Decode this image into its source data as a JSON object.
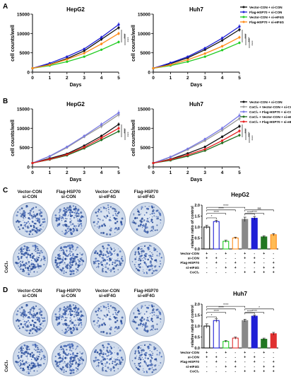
{
  "panels": {
    "A": "A",
    "B": "B",
    "C": "C",
    "D": "D"
  },
  "colors": {
    "black": "#111111",
    "blue": "#1f1fd6",
    "green": "#22cc22",
    "orange": "#ff8c1a",
    "gray": "#9a9a9a",
    "purple": "#7a7ae6",
    "darkgreen": "#1f6e1f",
    "red": "#e62020",
    "bar_white": "#ffffff",
    "bar_green_light": "#55dd55",
    "bar_orange_light": "#ffbb55",
    "bar_gray": "#888888",
    "bar_darkgreen": "#227722",
    "bar_red": "#e03030"
  },
  "chart_data": [
    {
      "id": "A-HepG2",
      "type": "line",
      "title": "HepG2",
      "xlabel": "Days",
      "ylabel": "cell counts/well",
      "x": [
        0,
        1,
        2,
        3,
        4,
        5
      ],
      "xlim": [
        0,
        5
      ],
      "ylim": [
        0,
        15000
      ],
      "yticks": [
        0,
        5000,
        10000,
        15000
      ],
      "series": [
        {
          "name": "Vector-CON + si-CON",
          "color": "#111111",
          "values": [
            1000,
            2000,
            3500,
            5500,
            8500,
            11500
          ]
        },
        {
          "name": "Flag-HSP70 + si-CON",
          "color": "#1f1fd6",
          "values": [
            1000,
            2300,
            4000,
            6000,
            9000,
            12300
          ]
        },
        {
          "name": "Vector-CON + si-eIF4G",
          "color": "#22cc22",
          "values": [
            1000,
            1700,
            2700,
            4000,
            5800,
            7800
          ]
        },
        {
          "name": "Flag-HSP70 + si-eIF4G",
          "color": "#ff8c1a",
          "values": [
            1000,
            1900,
            3300,
            4900,
            7300,
            10000
          ]
        }
      ],
      "sig": [
        "****",
        "****"
      ]
    },
    {
      "id": "A-Huh7",
      "type": "line",
      "title": "Huh7",
      "xlabel": "Days",
      "ylabel": "cell counts/well",
      "x": [
        0,
        1,
        2,
        3,
        4,
        5
      ],
      "xlim": [
        0,
        5
      ],
      "ylim": [
        0,
        15000
      ],
      "yticks": [
        0,
        5000,
        10000,
        15000
      ],
      "series": [
        {
          "name": "Vector-CON + si-CON",
          "color": "#111111",
          "values": [
            1000,
            2200,
            3700,
            5800,
            8200,
            11000
          ]
        },
        {
          "name": "Flag-HSP70 + si-CON",
          "color": "#1f1fd6",
          "values": [
            1000,
            2400,
            4000,
            6200,
            8800,
            11800
          ]
        },
        {
          "name": "Vector-CON + si-eIF4G",
          "color": "#22cc22",
          "values": [
            1000,
            1700,
            2700,
            4000,
            5700,
            7600
          ]
        },
        {
          "name": "Flag-HSP70 + si-eIF4G",
          "color": "#ff8c1a",
          "values": [
            1000,
            1900,
            3200,
            4800,
            6700,
            9000
          ]
        }
      ],
      "sig": [
        "****",
        "****",
        "****"
      ]
    },
    {
      "id": "B-HepG2",
      "type": "line",
      "title": "HepG2",
      "xlabel": "Days",
      "ylabel": "cell counts/well",
      "x": [
        0,
        1,
        2,
        3,
        4,
        5
      ],
      "xlim": [
        0,
        5
      ],
      "ylim": [
        0,
        15000
      ],
      "yticks": [
        0,
        5000,
        10000,
        15000
      ],
      "series": [
        {
          "name": "Vector-CON + si-CON",
          "color": "#111111",
          "values": [
            1000,
            2200,
            3400,
            5500,
            8000,
            11000
          ]
        },
        {
          "name": "CoCl₂ + Vector-CON + si-CON",
          "color": "#9a9a9a",
          "values": [
            1000,
            2700,
            5000,
            7800,
            10500,
            13500
          ]
        },
        {
          "name": "CoCl₂ + Flag-HSP70 + si-CON",
          "color": "#7a7ae6",
          "values": [
            1000,
            2800,
            5200,
            8000,
            11000,
            14000
          ]
        },
        {
          "name": "CoCl₂ + Vector-CON + si-eIF4G",
          "color": "#1f6e1f",
          "values": [
            1000,
            1900,
            3000,
            4800,
            7000,
            9200
          ]
        },
        {
          "name": "CoCl₂ + Flag-HSP70 + si-eIF4G",
          "color": "#e62020",
          "values": [
            1000,
            2000,
            3200,
            5100,
            7500,
            10000
          ]
        }
      ],
      "sig": [
        "****",
        "****"
      ]
    },
    {
      "id": "B-Huh7",
      "type": "line",
      "title": "Huh7",
      "xlabel": "Days",
      "ylabel": "cell counts/well",
      "x": [
        0,
        1,
        2,
        3,
        4,
        5
      ],
      "xlim": [
        0,
        5
      ],
      "ylim": [
        0,
        15000
      ],
      "yticks": [
        0,
        5000,
        10000,
        15000
      ],
      "series": [
        {
          "name": "Vector-CON + si-CON",
          "color": "#111111",
          "values": [
            1000,
            2000,
            3500,
            5200,
            7800,
            10500
          ]
        },
        {
          "name": "CoCl₂ + Vector-CON + si-CON",
          "color": "#9a9a9a",
          "values": [
            1000,
            2500,
            4500,
            6800,
            9500,
            12500
          ]
        },
        {
          "name": "CoCl₂ + Flag-HSP70 + si-CON",
          "color": "#7a7ae6",
          "values": [
            1000,
            2600,
            4700,
            7200,
            10000,
            13300
          ]
        },
        {
          "name": "CoCl₂ + Vector-CON + si-eIF4G",
          "color": "#1f6e1f",
          "values": [
            1000,
            1700,
            2800,
            4200,
            6200,
            8200
          ]
        },
        {
          "name": "CoCl₂ + Flag-HSP70 + si-eIF4G",
          "color": "#e62020",
          "values": [
            1000,
            1900,
            3100,
            4600,
            6800,
            9300
          ]
        }
      ],
      "sig": [
        "****",
        "****",
        "****"
      ]
    },
    {
      "id": "C-bar",
      "type": "bar",
      "title": "HepG2",
      "ylabel": "relative ratio of control",
      "ylim": [
        0,
        2.0
      ],
      "yticks": [
        "0.0",
        "0.5",
        "1.0",
        "1.5",
        "2.0"
      ],
      "values": [
        1.0,
        1.25,
        0.35,
        0.5,
        1.35,
        1.4,
        0.55,
        0.65
      ],
      "errors": [
        0.08,
        0.06,
        0.05,
        0.04,
        0.1,
        0.08,
        0.05,
        0.05
      ],
      "sig": [
        "****",
        "*",
        "****",
        "****",
        "****",
        "ns",
        "****"
      ],
      "row_labels": [
        "Vector-CON",
        "si-CON",
        "Flag-HSP70",
        "si-eIF4G",
        "CoCl₂"
      ],
      "row_signs": [
        [
          "+",
          "-",
          "+",
          "-",
          "+",
          "-",
          "+",
          "-"
        ],
        [
          "+",
          "+",
          "-",
          "-",
          "+",
          "+",
          "-",
          "-"
        ],
        [
          "-",
          "+",
          "-",
          "+",
          "-",
          "+",
          "-",
          "+"
        ],
        [
          "-",
          "-",
          "+",
          "+",
          "-",
          "-",
          "+",
          "+"
        ],
        [
          "-",
          "-",
          "-",
          "-",
          "+",
          "+",
          "+",
          "+"
        ]
      ]
    },
    {
      "id": "D-bar",
      "type": "bar",
      "title": "Huh7",
      "ylabel": "relative ratio of control",
      "ylim": [
        0,
        2.0
      ],
      "yticks": [
        "0.0",
        "0.5",
        "1.0",
        "1.5",
        "2.0"
      ],
      "values": [
        1.0,
        1.25,
        0.3,
        0.45,
        1.25,
        1.45,
        0.4,
        0.65
      ],
      "errors": [
        0.1,
        0.08,
        0.04,
        0.05,
        0.06,
        0.05,
        0.05,
        0.06
      ],
      "sig": [
        "****",
        "*",
        "****",
        "****",
        "****",
        "*",
        "****"
      ],
      "row_labels": [
        "Vector-CON",
        "si-CON",
        "Flag-HSP70",
        "si-eIF4G",
        "CoCl₂"
      ],
      "row_signs": [
        [
          "+",
          "-",
          "+",
          "-",
          "+",
          "-",
          "+",
          "-"
        ],
        [
          "+",
          "+",
          "-",
          "-",
          "+",
          "+",
          "-",
          "-"
        ],
        [
          "-",
          "+",
          "-",
          "+",
          "-",
          "+",
          "-",
          "+"
        ],
        [
          "-",
          "-",
          "+",
          "+",
          "-",
          "-",
          "+",
          "+"
        ],
        [
          "-",
          "-",
          "-",
          "-",
          "+",
          "+",
          "+",
          "+"
        ]
      ]
    }
  ],
  "colony": {
    "C": {
      "col_labels": [
        [
          "Vector-CON",
          "si-CON"
        ],
        [
          "Flag-HSP70",
          "si-CON"
        ],
        [
          "Vector-CON",
          "si-eIF4G"
        ],
        [
          "Flag-HSP70",
          "si-eIF4G"
        ]
      ],
      "row_label": "CoCl₂",
      "density": [
        [
          0.55,
          0.65,
          0.25,
          0.35
        ],
        [
          0.75,
          0.85,
          0.45,
          0.5
        ]
      ]
    },
    "D": {
      "col_labels": [
        [
          "Vector-CON",
          "si-CON"
        ],
        [
          "Flag-HSP70",
          "si-CON"
        ],
        [
          "Vector-CON",
          "si-eIF4G"
        ],
        [
          "Flag-HSP70",
          "si-eIF4G"
        ]
      ],
      "row_label": "CoCl₂",
      "density": [
        [
          0.6,
          0.7,
          0.25,
          0.35
        ],
        [
          0.7,
          0.8,
          0.4,
          0.45
        ]
      ]
    }
  }
}
